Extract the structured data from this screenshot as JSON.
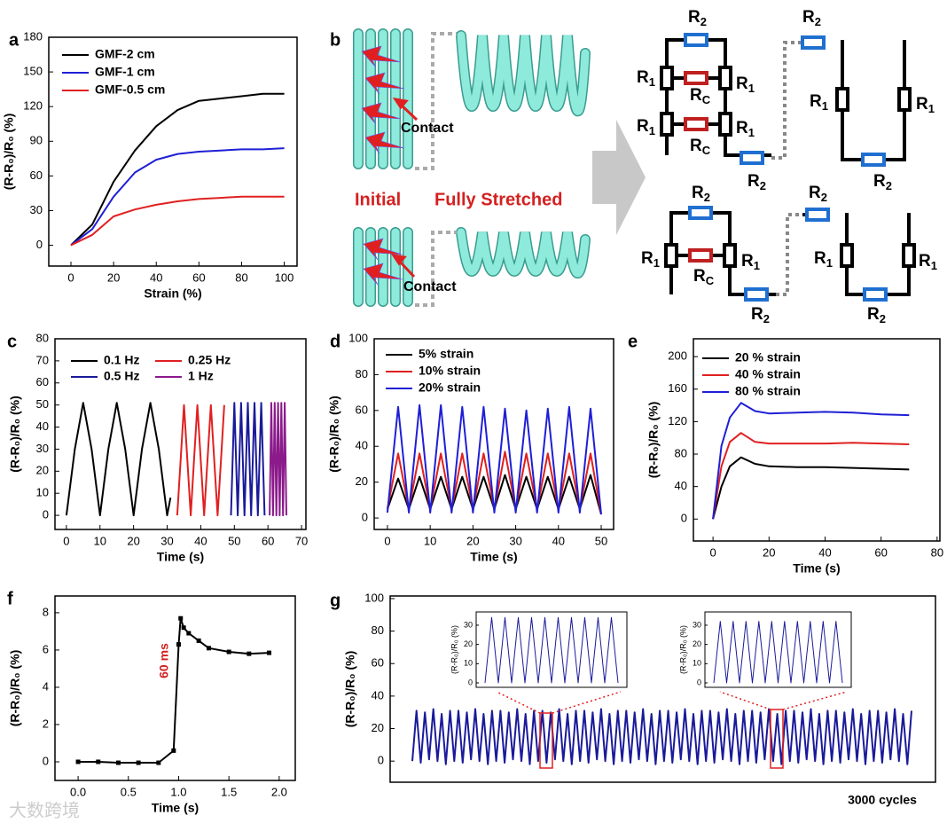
{
  "chart_data": [
    {
      "type": "line",
      "label": "a",
      "xlabel": "Strain (%)",
      "ylabel": "(R-R₀)/R₀ (%)",
      "xlim": [
        -10.4,
        106
      ],
      "xticks": [
        0,
        20,
        40,
        60,
        80,
        100
      ],
      "ylim": [
        -18,
        180
      ],
      "yticks": [
        0,
        30,
        60,
        90,
        120,
        150,
        180
      ],
      "series": [
        {
          "name": "GMF-2 cm",
          "color": "#000000",
          "x": [
            0,
            10,
            20,
            30,
            40,
            50,
            60,
            70,
            80,
            90,
            100
          ],
          "values": [
            0,
            18,
            55,
            82,
            103,
            117,
            125,
            127,
            129,
            131,
            131
          ]
        },
        {
          "name": "GMF-1 cm",
          "color": "#1f1fd6",
          "x": [
            0,
            10,
            20,
            30,
            40,
            50,
            60,
            70,
            80,
            90,
            100
          ],
          "values": [
            0,
            14,
            42,
            63,
            74,
            79,
            81,
            82,
            83,
            83,
            84
          ]
        },
        {
          "name": "GMF-0.5 cm",
          "color": "#e02020",
          "x": [
            0,
            10,
            20,
            30,
            40,
            50,
            60,
            70,
            80,
            90,
            100
          ],
          "values": [
            0,
            9,
            25,
            31,
            35,
            38,
            40,
            41,
            42,
            42,
            42
          ]
        }
      ]
    },
    {
      "type": "line",
      "label": "c",
      "xlabel": "Time (s)",
      "ylabel": "(R-R₀)/R₀ (%)",
      "xlim": [
        -3.4,
        71.3
      ],
      "xticks": [
        0,
        10,
        20,
        30,
        40,
        50,
        60,
        70
      ],
      "ylim": [
        -6.4,
        80
      ],
      "yticks": [
        0,
        10,
        20,
        30,
        40,
        50,
        60,
        70,
        80
      ],
      "series": [
        {
          "name": "0.1 Hz",
          "color": "#000000",
          "x": [
            0,
            2.5,
            5,
            7.5,
            10,
            12.5,
            15,
            17.5,
            20,
            22.5,
            25,
            27.5,
            30,
            31
          ],
          "values": [
            0,
            30,
            51,
            30,
            0,
            30,
            51,
            30,
            0,
            30,
            51,
            30,
            0,
            8
          ]
        },
        {
          "name": "0.25 Hz",
          "color": "#e02020",
          "x": [
            33,
            34,
            35,
            36,
            37,
            38,
            39,
            40,
            41,
            42,
            43,
            44,
            45,
            46,
            47
          ],
          "values": [
            0,
            25,
            50,
            25,
            0,
            25,
            50,
            25,
            0,
            25,
            50,
            25,
            0,
            25,
            50
          ]
        },
        {
          "name": "0.5 Hz",
          "color": "#1a1a9a",
          "x": [
            49,
            50,
            51,
            52,
            53,
            54,
            55,
            56,
            57,
            58,
            59
          ],
          "values": [
            0,
            51,
            0,
            51,
            0,
            51,
            0,
            51,
            0,
            51,
            0
          ]
        },
        {
          "name": "1 Hz",
          "color": "#8b1a8b",
          "x": [
            60.5,
            61,
            61.5,
            62,
            62.5,
            63,
            63.5,
            64,
            64.5,
            65,
            65.5
          ],
          "values": [
            0,
            51,
            0,
            51,
            0,
            51,
            0,
            51,
            0,
            51,
            0
          ]
        }
      ]
    },
    {
      "type": "line",
      "label": "d",
      "xlabel": "Time (s)",
      "ylabel": "(R-R₀)/R₀ (%)",
      "xlim": [
        -3.1,
        52.9
      ],
      "xticks": [
        0,
        10,
        20,
        30,
        40,
        50
      ],
      "ylim": [
        -6.4,
        100
      ],
      "yticks": [
        0,
        20,
        40,
        60,
        80,
        100
      ],
      "series": [
        {
          "name": "5% strain",
          "color": "#000000",
          "x": [
            0,
            2.5,
            5,
            7.5,
            10,
            12.5,
            15,
            17.5,
            20,
            22.5,
            25,
            27.5,
            30,
            32.5,
            35,
            37.5,
            40,
            42.5,
            45,
            47.5,
            50
          ],
          "values": [
            5,
            22,
            5,
            23,
            5,
            23,
            5,
            23,
            5,
            23,
            5,
            24,
            5,
            23,
            5,
            23,
            5,
            23,
            5,
            24,
            2
          ]
        },
        {
          "name": "10% strain",
          "color": "#e02020",
          "x": [
            0,
            2.5,
            5,
            7.5,
            10,
            12.5,
            15,
            17.5,
            20,
            22.5,
            25,
            27.5,
            30,
            32.5,
            35,
            37.5,
            40,
            42.5,
            45,
            47.5,
            50
          ],
          "values": [
            5,
            36,
            5,
            36,
            5,
            36,
            5,
            36,
            5,
            36,
            5,
            37,
            5,
            36,
            5,
            36,
            5,
            36,
            5,
            36,
            2
          ]
        },
        {
          "name": "20% strain",
          "color": "#1f1fd6",
          "x": [
            0,
            2.5,
            5,
            7.5,
            10,
            12.5,
            15,
            17.5,
            20,
            22.5,
            25,
            27.5,
            30,
            32.5,
            35,
            37.5,
            40,
            42.5,
            45,
            47.5,
            50
          ],
          "values": [
            3,
            62,
            3,
            63,
            3,
            63,
            3,
            62,
            3,
            62,
            3,
            61,
            3,
            60,
            3,
            61,
            3,
            62,
            3,
            61,
            2
          ]
        }
      ]
    },
    {
      "type": "line",
      "label": "e",
      "xlabel": "Time (s)",
      "ylabel": "(R-R₀)/R₀ (%)",
      "xlim": [
        -7,
        81
      ],
      "xticks": [
        0,
        20,
        40,
        60,
        80
      ],
      "ylim": [
        -27,
        222
      ],
      "yticks": [
        0,
        40,
        80,
        120,
        160,
        200
      ],
      "series": [
        {
          "name": "20 % strain",
          "color": "#000000",
          "x": [
            0,
            3,
            6,
            10,
            15,
            20,
            30,
            40,
            50,
            60,
            70
          ],
          "values": [
            0,
            40,
            65,
            76,
            68,
            65,
            64,
            64,
            63,
            62,
            61
          ]
        },
        {
          "name": "40 % strain",
          "color": "#e02020",
          "x": [
            0,
            3,
            6,
            10,
            15,
            20,
            30,
            40,
            50,
            60,
            70
          ],
          "values": [
            0,
            65,
            95,
            106,
            95,
            93,
            93,
            93,
            94,
            93,
            92
          ]
        },
        {
          "name": "80 % strain",
          "color": "#1f1fd6",
          "x": [
            0,
            3,
            6,
            10,
            15,
            20,
            30,
            40,
            50,
            60,
            70
          ],
          "values": [
            0,
            90,
            125,
            143,
            133,
            130,
            131,
            132,
            131,
            129,
            128
          ]
        }
      ]
    },
    {
      "type": "line",
      "label": "f",
      "xlabel": "Time (s)",
      "ylabel": "(R-R₀)/R₀ (%)",
      "annotation": "60 ms",
      "marker": "square",
      "xlim": [
        -0.23,
        2.16
      ],
      "xticks": [
        {
          "value": 0,
          "label": "0.0"
        },
        0.5,
        {
          "value": 1,
          "label": "1.0"
        },
        1.5,
        {
          "value": 2,
          "label": "2.0"
        }
      ],
      "ylim": [
        -1,
        8.9
      ],
      "yticks": [
        0,
        2,
        4,
        6,
        8
      ],
      "series": [
        {
          "color": "#000000",
          "x": [
            0,
            0.2,
            0.4,
            0.6,
            0.8,
            0.95,
            1.0,
            1.02,
            1.05,
            1.1,
            1.2,
            1.3,
            1.5,
            1.7,
            1.9
          ],
          "values": [
            0,
            0,
            -0.05,
            -0.05,
            -0.05,
            0.6,
            6.3,
            7.7,
            7.2,
            6.9,
            6.5,
            6.1,
            5.9,
            5.8,
            5.85
          ]
        }
      ]
    },
    {
      "type": "line",
      "label": "g",
      "ylabel": "(R-R₀)/R₀ (%)",
      "annotation": "3000 cycles",
      "ylim": [
        -13,
        101.6
      ],
      "yticks": [
        0,
        20,
        40,
        60,
        80,
        100
      ],
      "series": [
        {
          "color": "#1a1a9a",
          "values": [
            0,
            31,
            -1,
            30,
            1,
            32,
            0,
            29,
            -2,
            31,
            0,
            31,
            -1,
            30,
            1,
            32,
            0,
            29,
            -2,
            31,
            0,
            31,
            -1,
            30,
            1,
            32,
            0,
            29,
            -2,
            31,
            0,
            31,
            -1,
            30,
            1,
            32,
            0,
            29,
            -2,
            31,
            0,
            31,
            -1,
            30,
            1,
            32,
            0,
            29,
            -2,
            31,
            0,
            31,
            -1,
            30,
            1,
            32,
            0,
            29,
            -2,
            31,
            0,
            31,
            -1,
            30,
            1,
            32,
            0,
            29,
            -2,
            31,
            0,
            31,
            -1,
            30,
            1,
            32,
            0,
            29,
            -2,
            31,
            0,
            31,
            -1,
            30,
            1,
            32,
            0,
            29,
            -2,
            31,
            0,
            31,
            -1,
            30,
            1,
            32,
            0,
            29,
            -2,
            31,
            0,
            31,
            -1,
            30,
            1,
            32,
            0,
            29,
            -2,
            31,
            0,
            31,
            -1,
            30,
            1,
            32,
            0,
            29,
            -2,
            31
          ]
        }
      ]
    },
    {
      "type": "line",
      "ylabel": "(R-R₀)/R₀ (%)",
      "ylim": [
        -2.3,
        36.9
      ],
      "yticks": [
        0,
        10,
        20,
        30
      ],
      "series": [
        {
          "color": "#1a1a9a",
          "values": [
            0,
            34,
            0,
            34,
            0,
            34,
            0,
            34,
            0,
            34,
            0,
            34,
            0,
            34,
            0,
            34,
            0,
            34,
            0,
            34,
            0
          ]
        }
      ]
    },
    {
      "type": "line",
      "ylabel": "(R-R₀)/R₀ (%)",
      "ylim": [
        -2.3,
        36.9
      ],
      "yticks": [
        0,
        10,
        20,
        30
      ],
      "series": [
        {
          "color": "#1a1a9a",
          "values": [
            0,
            32,
            0,
            32,
            0,
            32,
            0,
            32,
            0,
            32,
            0,
            32,
            0,
            32,
            0,
            32,
            0,
            32,
            0,
            32,
            0
          ]
        }
      ]
    }
  ],
  "diagram": {
    "label": "b",
    "texts": [
      "Initial",
      "Fully Stretched",
      "Contact",
      "Contact"
    ],
    "circuit": [
      {
        "text": "R",
        "sub": "2"
      },
      {
        "text": "R",
        "sub": "1"
      },
      {
        "text": "R",
        "sub": "1"
      },
      {
        "text": "R",
        "sub": "C"
      },
      {
        "text": "R",
        "sub": "1"
      },
      {
        "text": "R",
        "sub": "1"
      },
      {
        "text": "R",
        "sub": "C"
      },
      {
        "text": "R",
        "sub": "2"
      },
      {
        "text": "R",
        "sub": "2"
      },
      {
        "text": "R",
        "sub": "1"
      },
      {
        "text": "R",
        "sub": "1"
      },
      {
        "text": "R",
        "sub": "2"
      },
      {
        "text": "R",
        "sub": "2"
      },
      {
        "text": "R",
        "sub": "1"
      },
      {
        "text": "R",
        "sub": "1"
      },
      {
        "text": "R",
        "sub": "C"
      },
      {
        "text": "R",
        "sub": "2"
      },
      {
        "text": "R",
        "sub": "2"
      },
      {
        "text": "R",
        "sub": "1"
      },
      {
        "text": "R",
        "sub": "1"
      },
      {
        "text": "R",
        "sub": "2"
      }
    ]
  },
  "watermark": "大数跨境"
}
